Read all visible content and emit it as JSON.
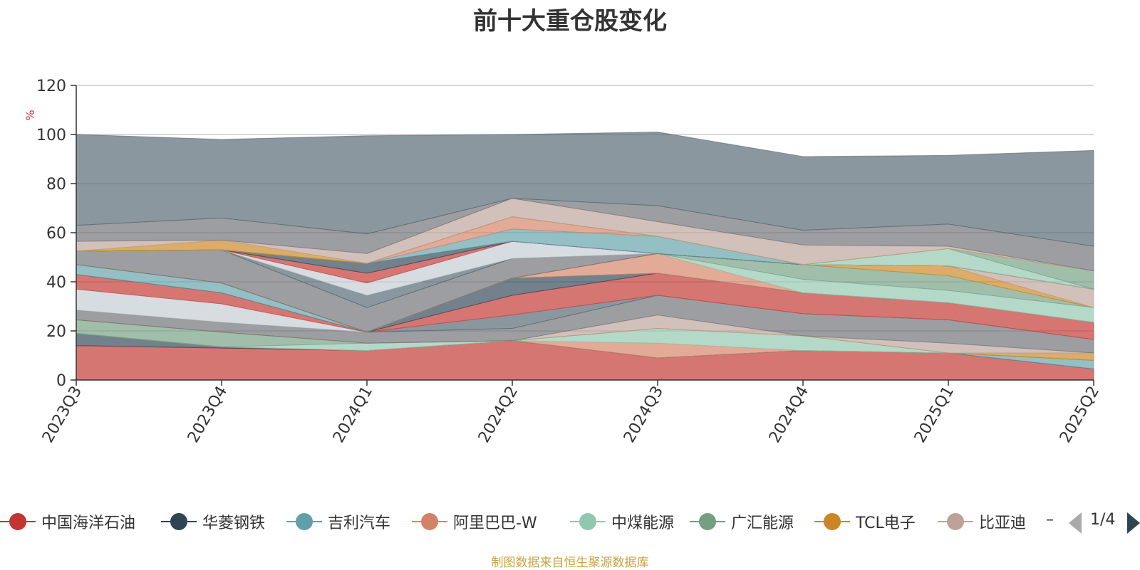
{
  "chart_data": {
    "type": "area",
    "title": "前十大重仓股变化",
    "ylabel": "%",
    "ylim": [
      0,
      120
    ],
    "yticks": [
      0,
      20,
      40,
      60,
      80,
      100,
      120
    ],
    "grid": true,
    "legend_position": "bottom",
    "categories": [
      "2023Q3",
      "2023Q4",
      "2024Q1",
      "2024Q2",
      "2024Q3",
      "2024Q4",
      "2025Q1",
      "2025Q2"
    ],
    "series": [
      {
        "name": "中国海洋石油",
        "values": [
          14,
          13,
          12,
          16,
          9,
          12,
          11,
          4.5
        ]
      },
      {
        "name": "华菱钢铁",
        "values": [
          5,
          0.5,
          0,
          0,
          0,
          0,
          0,
          0
        ]
      },
      {
        "name": "吉利汽车",
        "values": [
          0,
          0,
          0,
          0,
          0,
          0,
          0,
          3.5
        ]
      },
      {
        "name": "阿里巴巴-W",
        "values": [
          0,
          0,
          0,
          0,
          6,
          0,
          0,
          0
        ]
      },
      {
        "name": "中煤能源",
        "values": [
          0,
          0,
          3,
          0,
          6,
          6,
          0,
          0
        ]
      },
      {
        "name": "广汇能源",
        "values": [
          5.5,
          6,
          0,
          0,
          0,
          0,
          0,
          0
        ]
      },
      {
        "name": "TCL电子",
        "values": [
          0,
          0,
          0,
          0,
          0,
          0,
          0,
          3
        ]
      },
      {
        "name": "比亚迪",
        "values": [
          0,
          0,
          0,
          0,
          5.5,
          0,
          4,
          0
        ]
      },
      {
        "name": "",
        "values": [
          4,
          4,
          4.5,
          5,
          8,
          9,
          9.5,
          5.5
        ]
      },
      {
        "name": "",
        "values": [
          0,
          0,
          0,
          5.5,
          0,
          0,
          0,
          0
        ]
      },
      {
        "name": "",
        "values": [
          8.5,
          7.5,
          0,
          0,
          0,
          0,
          0,
          0
        ]
      },
      {
        "name": "",
        "values": [
          6,
          4.5,
          0,
          8,
          9,
          8.5,
          7,
          7
        ]
      },
      {
        "name": "",
        "values": [
          0,
          0,
          0,
          7,
          0,
          0,
          0,
          0
        ]
      },
      {
        "name": "",
        "values": [
          4,
          4,
          0,
          0,
          0,
          0,
          0,
          0
        ]
      },
      {
        "name": "",
        "values": [
          0,
          0,
          0,
          0,
          8,
          0,
          0,
          0
        ]
      },
      {
        "name": "",
        "values": [
          0,
          0,
          0,
          0,
          0,
          5.5,
          5,
          6
        ]
      },
      {
        "name": "",
        "values": [
          0,
          0,
          0,
          0,
          0,
          6,
          6,
          0
        ]
      },
      {
        "name": "",
        "values": [
          0,
          0,
          0,
          0,
          0,
          0,
          4,
          0
        ]
      },
      {
        "name": "",
        "values": [
          0,
          0,
          0,
          0,
          0,
          0,
          0,
          7.5
        ]
      },
      {
        "name": "",
        "values": [
          5.5,
          13.5,
          10,
          8,
          0,
          0,
          0,
          0
        ]
      },
      {
        "name": "",
        "values": [
          0,
          0,
          5,
          0,
          0,
          0,
          0,
          0
        ]
      },
      {
        "name": "",
        "values": [
          0,
          0,
          5,
          7,
          0,
          0,
          0,
          0
        ]
      },
      {
        "name": "",
        "values": [
          0,
          0,
          4,
          0,
          0,
          0,
          0,
          0
        ]
      },
      {
        "name": "",
        "values": [
          0,
          0,
          4,
          0,
          0,
          0,
          0,
          0
        ]
      },
      {
        "name": "",
        "values": [
          0,
          0,
          0,
          5,
          7,
          0,
          0,
          0
        ]
      },
      {
        "name": "",
        "values": [
          0,
          0,
          0,
          5,
          0,
          0,
          0,
          0
        ]
      },
      {
        "name": "",
        "values": [
          0,
          0,
          0,
          0,
          0,
          0,
          7,
          0
        ]
      },
      {
        "name": "",
        "values": [
          0,
          0,
          0,
          0,
          0,
          0,
          0,
          7.5
        ]
      },
      {
        "name": "",
        "values": [
          0,
          4,
          0,
          0,
          0,
          0,
          0,
          0
        ]
      },
      {
        "name": "",
        "values": [
          4,
          0,
          4,
          7.5,
          6,
          8,
          1,
          0
        ]
      },
      {
        "name": "",
        "values": [
          6.5,
          9,
          8,
          0,
          6.5,
          6,
          9,
          10
        ]
      },
      {
        "name": "",
        "values": [
          37,
          32,
          40,
          26,
          30,
          30,
          28,
          39
        ]
      }
    ],
    "colors": [
      "#c23531",
      "#2f4554",
      "#61a0a8",
      "#d48265",
      "#91c7ae",
      "#749f83",
      "#ca8622",
      "#bda29a",
      "#6e7074",
      "#546570",
      "#c4ccd3"
    ]
  },
  "legend": {
    "items": [
      {
        "label": "中国海洋石油",
        "color": "#c23531"
      },
      {
        "label": "华菱钢铁",
        "color": "#2f4554"
      },
      {
        "label": "吉利汽车",
        "color": "#61a0a8"
      },
      {
        "label": "阿里巴巴-W",
        "color": "#d48265"
      },
      {
        "label": "中煤能源",
        "color": "#91c7ae"
      },
      {
        "label": "广汇能源",
        "color": "#749f83"
      },
      {
        "label": "TCL电子",
        "color": "#ca8622"
      },
      {
        "label": "比亚迪",
        "color": "#bda29a"
      }
    ],
    "more": "–",
    "page": "1/4"
  },
  "source_note": "制图数据来自恒生聚源数据库"
}
